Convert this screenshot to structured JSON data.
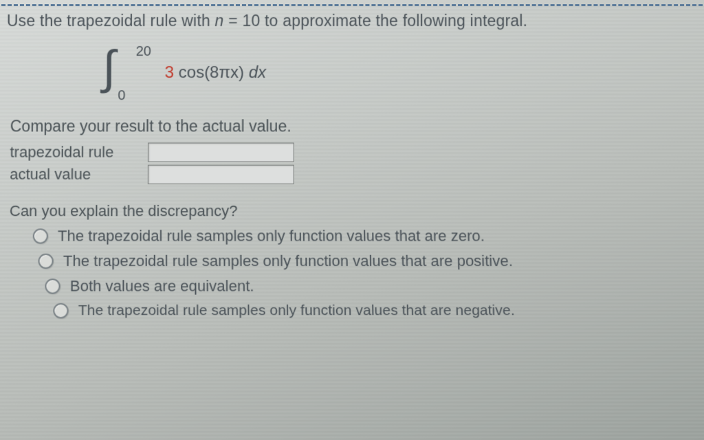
{
  "question": {
    "prompt_prefix": "Use the trapezoidal rule with ",
    "var_letter": "n",
    "equals": " = ",
    "n_value": "10",
    "prompt_suffix": " to approximate the following integral.",
    "integral": {
      "lower": "0",
      "upper": "20",
      "coef": "3",
      "func": " cos(8πx) ",
      "dx_d": "d",
      "dx_x": "x"
    },
    "compare_text": "Compare your result to the actual value.",
    "fields": {
      "trapezoidal_label": "trapezoidal rule",
      "actual_label": "actual value"
    },
    "explain_text": "Can you explain the discrepancy?",
    "options": [
      "The trapezoidal rule samples only function values that are zero.",
      "The trapezoidal rule samples only function values that are positive.",
      "Both values are equivalent.",
      "The trapezoidal rule samples only function values that are negative."
    ]
  },
  "style": {
    "accent_color": "#c0392b",
    "border_color": "#5a7a9a",
    "text_color": "#4a5258",
    "input_bg": "#dddfde",
    "input_border": "#7a7e7c"
  }
}
